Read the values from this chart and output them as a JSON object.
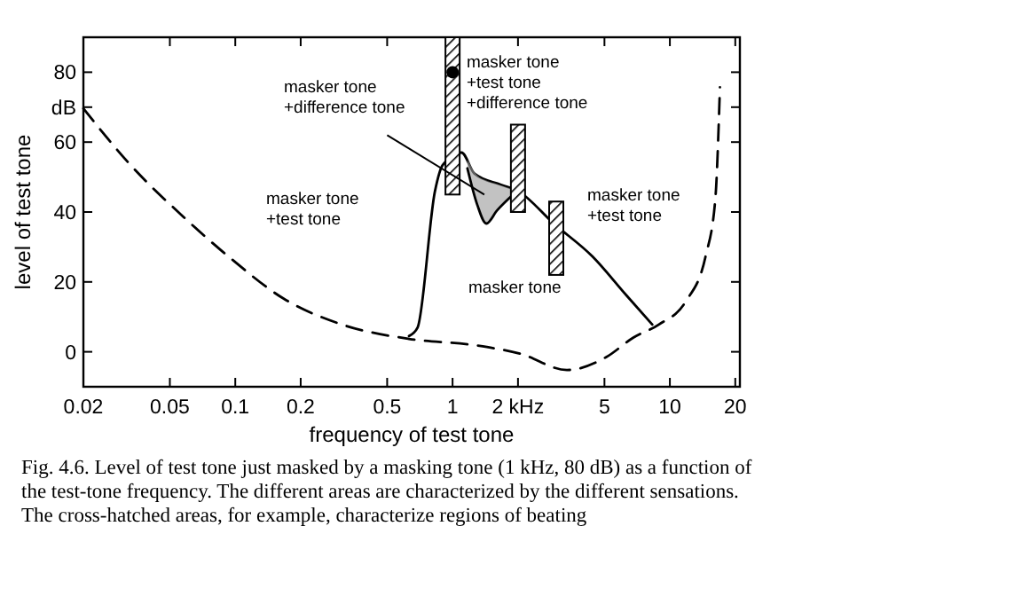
{
  "chart_data": {
    "type": "line",
    "xlabel": "frequency of test tone",
    "ylabel": "level of test tone",
    "log": "x",
    "xlim": [
      0.02,
      21
    ],
    "ylim": [
      -10,
      90
    ],
    "xticks": [
      {
        "value": 0.02,
        "label": "0.02"
      },
      0.05,
      0.1,
      0.2,
      0.5,
      1,
      {
        "value": 2,
        "label": "2 kHz"
      },
      5,
      10,
      20
    ],
    "yticks": [
      0,
      20,
      40,
      60,
      {
        "value": 70,
        "label": "dB"
      },
      80
    ],
    "grid": false,
    "series": [
      {
        "line_style": "dashed",
        "color": "#000000",
        "x": [
          0.02,
          0.033,
          0.058,
          0.095,
          0.166,
          0.31,
          0.63,
          1.26,
          2.06,
          3.36,
          5.1,
          6.8,
          8.9,
          11.8,
          14.6,
          16.2,
          17
        ],
        "values": [
          69.6,
          53.4,
          38.5,
          26.8,
          15.3,
          7.8,
          3.7,
          1.9,
          -0.6,
          -5.2,
          -1.5,
          4.1,
          7.8,
          14.3,
          27.3,
          44,
          75.7
        ]
      },
      {
        "line_style": "solid",
        "color": "#000000",
        "x": [
          0.63,
          0.69,
          0.83,
          0.9,
          1.1,
          1.26,
          1.67,
          2.0,
          2.92,
          4.4,
          6.3,
          8.3
        ],
        "values": [
          4.5,
          6.9,
          46,
          53.4,
          57,
          51,
          47.8,
          46,
          36.7,
          27.3,
          16.2,
          7.8
        ]
      },
      {
        "type": "line",
        "line_style": "solid",
        "color": "#000000",
        "x": [
          1.17,
          1.3,
          1.43,
          1.6,
          1.9
        ],
        "values": [
          52.5,
          42,
          36.7,
          40.4,
          45
        ],
        "lower": [
          52.5,
          42,
          36.7,
          40.4,
          45
        ],
        "upper": [
          55,
          50.5,
          49,
          48,
          46.5
        ]
      },
      {
        "type": "bar",
        "color": "#000000",
        "x": [
          1,
          2,
          3
        ],
        "base": [
          45,
          40,
          22
        ],
        "values": [
          45,
          25,
          21
        ]
      },
      {
        "type": "scatter",
        "marker": "circle",
        "color": "#000000",
        "x": [
          1
        ],
        "values": [
          80
        ]
      }
    ],
    "annotations": [
      "masker tone\n+test tone",
      "masker tone\n+difference tone",
      {
        "text": "masker tone\n+test tone\n+difference tone",
        "x": 1.16,
        "y": 81.3
      },
      "masker tone\n+test tone",
      "masker tone",
      "Fig. 4.6. Level of test tone just masked by a masking tone (1 kHz, 80 dB) as a function of the test-tone frequency. The different areas are characterized by the different sensations. The cross-hatched areas, for example, characterize regions of beating"
    ]
  }
}
